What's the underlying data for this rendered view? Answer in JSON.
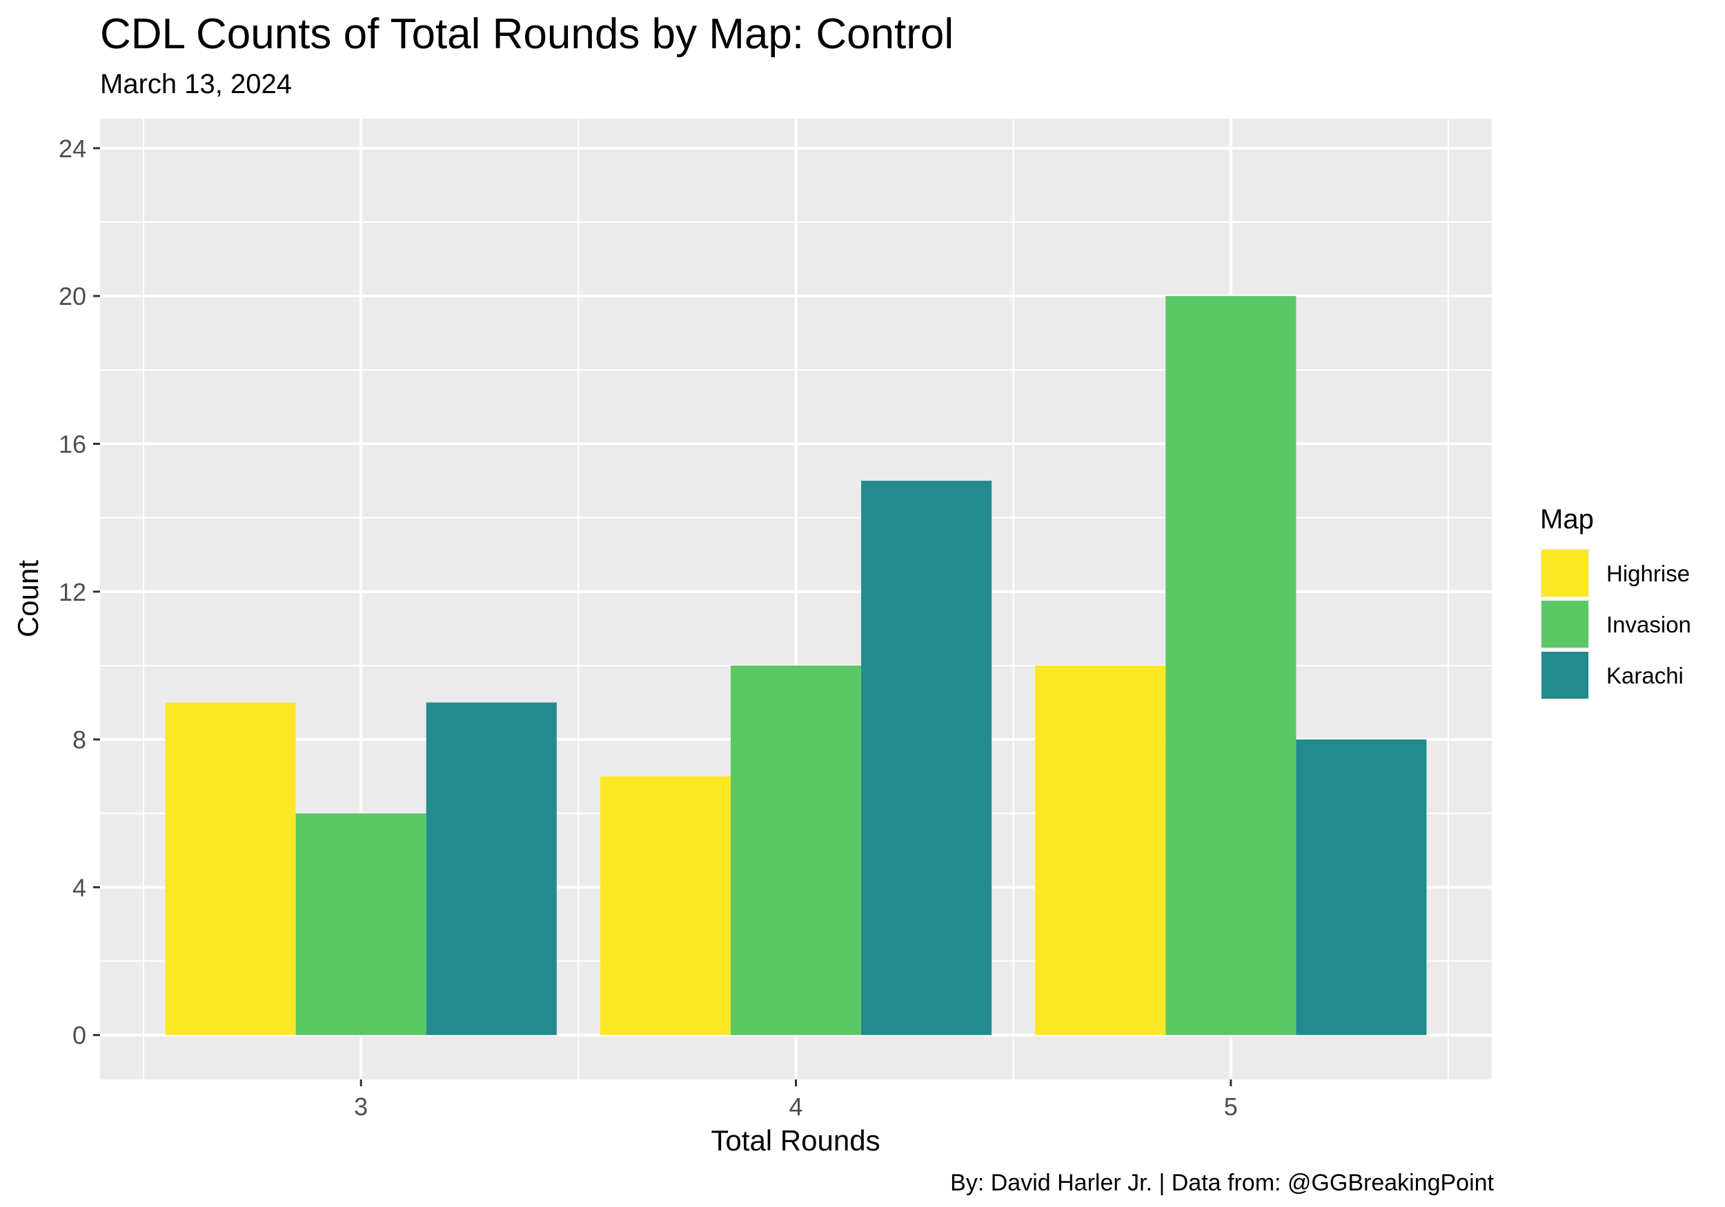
{
  "title": "CDL Counts of Total Rounds by Map: Control",
  "subtitle": "March 13, 2024",
  "caption": "By: David Harler Jr. | Data from: @GGBreakingPoint",
  "chart_data": {
    "type": "bar",
    "title": "CDL Counts of Total Rounds by Map: Control",
    "subtitle": "March 13, 2024",
    "xlabel": "Total Rounds",
    "ylabel": "Count",
    "categories": [
      "3",
      "4",
      "5"
    ],
    "series": [
      {
        "name": "Highrise",
        "color": "#FDE725",
        "values": [
          9,
          7,
          10
        ]
      },
      {
        "name": "Invasion",
        "color": "#5AC865",
        "values": [
          6,
          10,
          20
        ]
      },
      {
        "name": "Karachi",
        "color": "#238A8D",
        "values": [
          9,
          15,
          8
        ]
      }
    ],
    "ylim": [
      -1.2,
      24.8
    ],
    "yticks": [
      0,
      4,
      8,
      12,
      16,
      20,
      24
    ],
    "grid": true,
    "legend": {
      "title": "Map",
      "position": "right"
    },
    "panel_background": "#EBEBEB",
    "grid_color": "#FFFFFF"
  }
}
